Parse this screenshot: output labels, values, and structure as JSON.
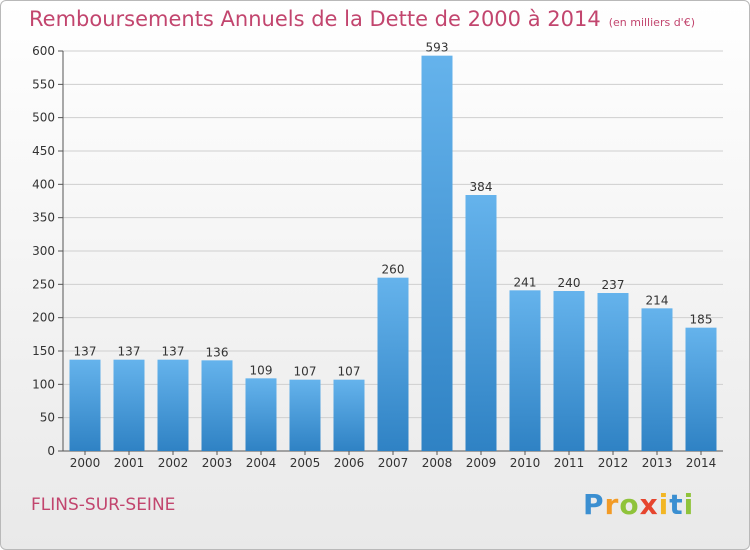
{
  "title": "Remboursements Annuels de la Dette de 2000 à 2014",
  "unit_note": "(en milliers d'€)",
  "city": "FLINS-SUR-SEINE",
  "logo": {
    "p": "P",
    "r": "r",
    "o": "o",
    "x": "x",
    "i1": "i",
    "t": "t",
    "i2": "i"
  },
  "colors": {
    "title": "#c2456e",
    "bar_top": "#65b3ec",
    "bar_bottom": "#2f82c4"
  },
  "chart_data": {
    "type": "bar",
    "title": "Remboursements Annuels de la Dette de 2000 à 2014",
    "xlabel": "",
    "ylabel": "",
    "ylim": [
      0,
      600
    ],
    "yticks": [
      0,
      50,
      100,
      150,
      200,
      250,
      300,
      350,
      400,
      450,
      500,
      550,
      600
    ],
    "grid": true,
    "categories": [
      "2000",
      "2001",
      "2002",
      "2003",
      "2004",
      "2005",
      "2006",
      "2007",
      "2008",
      "2009",
      "2010",
      "2011",
      "2012",
      "2013",
      "2014"
    ],
    "values": [
      137,
      137,
      137,
      136,
      109,
      107,
      107,
      260,
      593,
      384,
      241,
      240,
      237,
      214,
      185
    ]
  }
}
